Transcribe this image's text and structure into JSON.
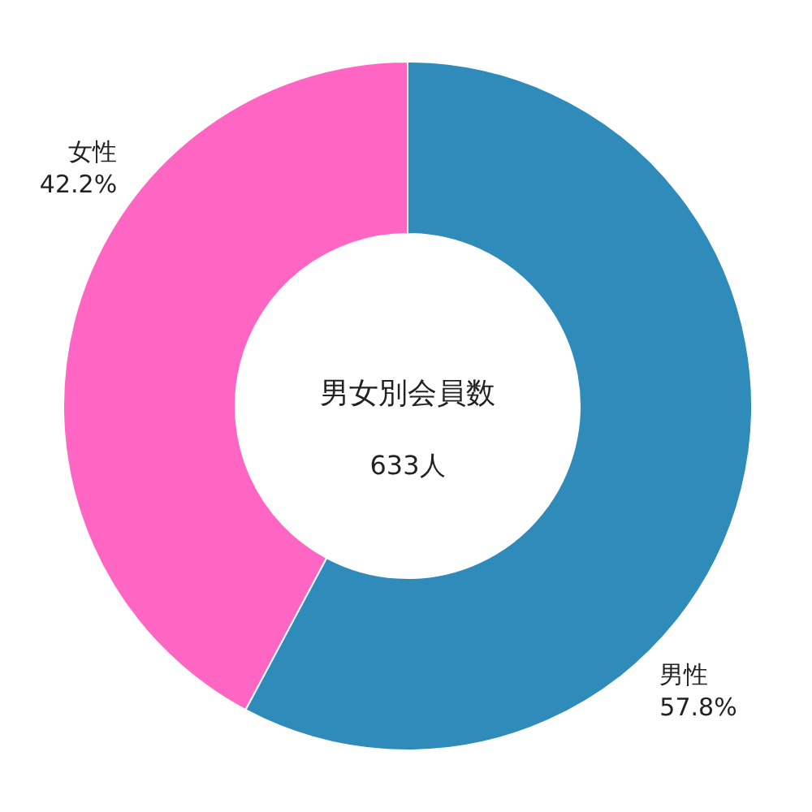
{
  "chart_data": {
    "type": "donut",
    "title": "男女別会員数",
    "annotations": [
      "633人"
    ],
    "categories": [
      "男性",
      "女性"
    ],
    "values": [
      57.8,
      42.2
    ],
    "value_labels": [
      "57.8%",
      "42.2%"
    ],
    "colors": [
      "#2e8bba",
      "#ff66c4"
    ]
  }
}
